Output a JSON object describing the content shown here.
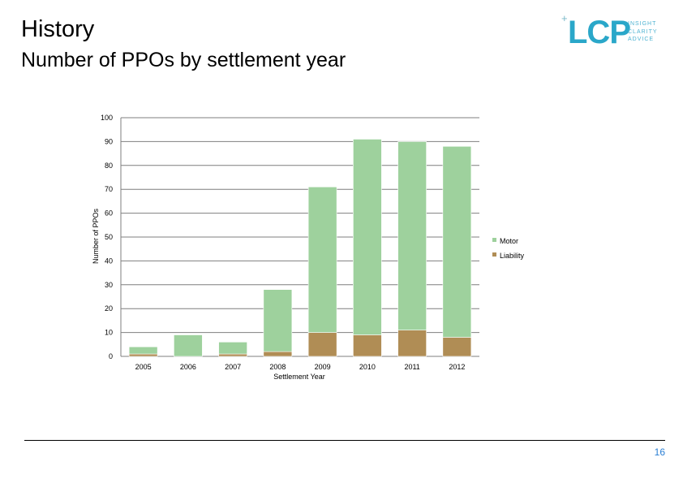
{
  "header": {
    "title": "History",
    "subtitle": "Number of PPOs by settlement year"
  },
  "logo": {
    "text": "LCP",
    "tagline": [
      "INSIGHT",
      "CLARITY",
      "ADVICE"
    ],
    "color": "#2aa7c9"
  },
  "chart_data": {
    "type": "bar",
    "stacked": true,
    "categories": [
      "2005",
      "2006",
      "2007",
      "2008",
      "2009",
      "2010",
      "2011",
      "2012"
    ],
    "series": [
      {
        "name": "Liability",
        "color": "#b08d55",
        "values": [
          1,
          0,
          1,
          2,
          10,
          9,
          11,
          8
        ]
      },
      {
        "name": "Motor",
        "color": "#9ed19d",
        "values": [
          3,
          9,
          5,
          26,
          61,
          82,
          79,
          80
        ]
      }
    ],
    "legend_order": [
      "Motor",
      "Liability"
    ],
    "xlabel": "Settlement Year",
    "ylabel": "Number of PPOs",
    "ylim": [
      0,
      100
    ],
    "yticks": [
      0,
      10,
      20,
      30,
      40,
      50,
      60,
      70,
      80,
      90,
      100
    ],
    "grid": true,
    "legend_position": "right"
  },
  "footer": {
    "page_number": "16"
  }
}
